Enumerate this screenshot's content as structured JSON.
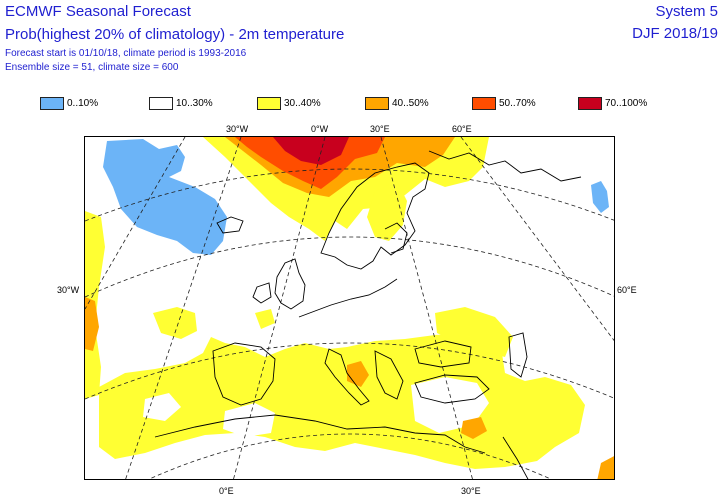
{
  "header": {
    "title": "ECMWF Seasonal Forecast",
    "subtitle": "Prob(highest 20% of climatology) - 2m temperature",
    "forecast_line": "Forecast start is 01/10/18, climate period is 1993-2016",
    "ensemble_line": "Ensemble size = 51, climate size = 600",
    "system": "System 5",
    "season": "DJF 2018/19"
  },
  "legend": {
    "items": [
      {
        "label": "0..10%",
        "color": "#6cb4f7"
      },
      {
        "label": "10..30%",
        "color": "#ffffff"
      },
      {
        "label": "30..40%",
        "color": "#ffff33"
      },
      {
        "label": "40..50%",
        "color": "#ffa600"
      },
      {
        "label": "50..70%",
        "color": "#ff4d00"
      },
      {
        "label": "70..100%",
        "color": "#c8001e"
      }
    ]
  },
  "map": {
    "top_labels": [
      "30°W",
      "0°W",
      "30°E",
      "60°E"
    ],
    "left_label": "30°W",
    "right_label": "60°E",
    "bottom_labels": [
      "0°E",
      "30°E"
    ]
  }
}
